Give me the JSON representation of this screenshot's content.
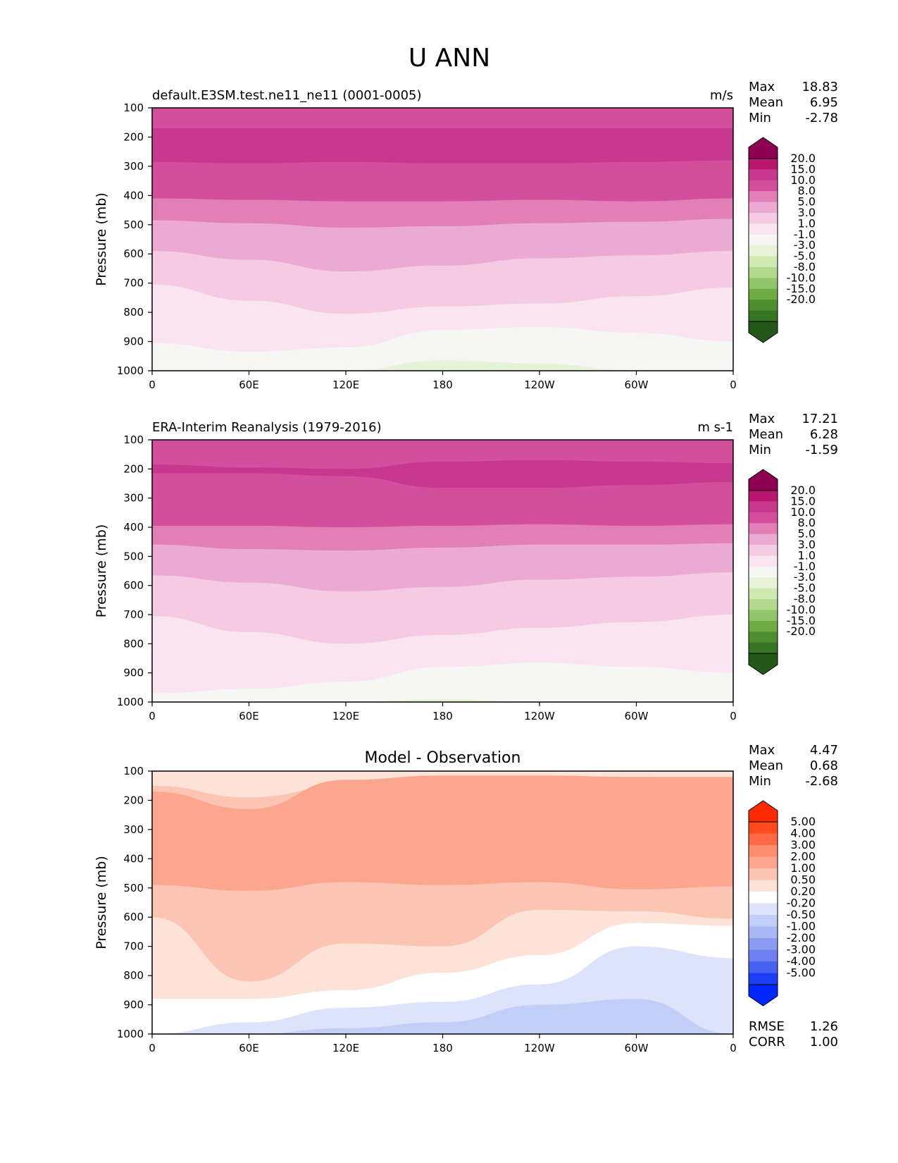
{
  "figure": {
    "title": "U ANN"
  },
  "levels": {
    "field": [
      "20.0",
      "15.0",
      "10.0",
      "8.0",
      "5.0",
      "3.0",
      "1.0",
      "-1.0",
      "-3.0",
      "-5.0",
      "-8.0",
      "-10.0",
      "-15.0",
      "-20.0"
    ],
    "diff": [
      "5.00",
      "4.00",
      "3.00",
      "2.00",
      "1.00",
      "0.50",
      "0.20",
      "-0.20",
      "-0.50",
      "-1.00",
      "-2.00",
      "-3.00",
      "-4.00",
      "-5.00"
    ]
  },
  "colors": {
    "field": [
      "#8e0152",
      "#b8166f",
      "#c8388e",
      "#d34f9d",
      "#e17fb6",
      "#ecaad3",
      "#f5cbe4",
      "#f9e4f0",
      "#f6f6f4",
      "#e7f3d6",
      "#cfe9b0",
      "#b2d98e",
      "#92c66a",
      "#6fac44",
      "#4d8f2f",
      "#357524",
      "#23581a"
    ],
    "diff": [
      "#ff2a00",
      "#ff4a1d",
      "#ff6a45",
      "#ff8d70",
      "#fda68f",
      "#fcc5b3",
      "#fde2d8",
      "#ffffff",
      "#dce3fb",
      "#c3cef8",
      "#a9b7f5",
      "#8b9bf2",
      "#6c80f0",
      "#4562f0",
      "#1a3df5",
      "#0026ff"
    ]
  },
  "chart_data": [
    {
      "type": "contour",
      "id": "test",
      "title_left": "default.E3SM.test.ne11_ne11 (0001-0005)",
      "title_right": "m/s",
      "title_center": "",
      "ylabel": "Pressure (mb)",
      "xlabel": "",
      "x_ticks": [
        "0",
        "60E",
        "120E",
        "180",
        "120W",
        "60W",
        "0"
      ],
      "y_ticks": [
        "100",
        "200",
        "300",
        "400",
        "500",
        "600",
        "700",
        "800",
        "900",
        "1000"
      ],
      "xlim": [
        0,
        360
      ],
      "ylim": [
        1000,
        100
      ],
      "stats": {
        "labels": [
          "Max",
          "Mean",
          "Min"
        ],
        "values": [
          "18.83",
          "6.95",
          "-2.78"
        ]
      },
      "colorbar": "field",
      "bands_from_top": [
        {
          "lower_level": "10.0",
          "level": [
            100,
            100,
            100,
            100,
            100,
            100,
            100
          ]
        },
        {
          "lower_level": "15.0",
          "level": [
            170,
            170,
            170,
            170,
            170,
            170,
            170
          ]
        },
        {
          "lower_level": "10.0",
          "level": [
            285,
            290,
            285,
            290,
            290,
            285,
            280
          ]
        },
        {
          "lower_level": "8.0",
          "level": [
            410,
            415,
            420,
            420,
            415,
            420,
            410
          ]
        },
        {
          "lower_level": "5.0",
          "level": [
            485,
            495,
            510,
            505,
            495,
            490,
            480
          ]
        },
        {
          "lower_level": "3.0",
          "level": [
            590,
            620,
            660,
            640,
            615,
            605,
            590
          ]
        },
        {
          "lower_level": "1.0",
          "level": [
            705,
            760,
            805,
            780,
            770,
            745,
            715
          ]
        },
        {
          "lower_level": "-1.0",
          "level": [
            905,
            935,
            920,
            860,
            850,
            870,
            900
          ]
        },
        {
          "lower_level": "-3.0",
          "level": [
            1000,
            1000,
            1000,
            965,
            975,
            1000,
            1000
          ]
        }
      ]
    },
    {
      "type": "contour",
      "id": "ref",
      "title_left": "ERA-Interim Reanalysis (1979-2016)",
      "title_right": "m s-1",
      "title_center": "",
      "ylabel": "Pressure (mb)",
      "xlabel": "",
      "x_ticks": [
        "0",
        "60E",
        "120E",
        "180",
        "120W",
        "60W",
        "0"
      ],
      "y_ticks": [
        "100",
        "200",
        "300",
        "400",
        "500",
        "600",
        "700",
        "800",
        "900",
        "1000"
      ],
      "xlim": [
        0,
        360
      ],
      "ylim": [
        1000,
        100
      ],
      "stats": {
        "labels": [
          "Max",
          "Mean",
          "Min"
        ],
        "values": [
          "17.21",
          "6.28",
          "-1.59"
        ]
      },
      "colorbar": "field",
      "bands_from_top": [
        {
          "lower_level": "10.0",
          "level": [
            100,
            100,
            100,
            100,
            100,
            100,
            100
          ]
        },
        {
          "lower_level": "15.0",
          "level": [
            185,
            195,
            200,
            175,
            170,
            175,
            180
          ]
        },
        {
          "lower_level": "10.0",
          "level": [
            215,
            215,
            225,
            265,
            265,
            255,
            245
          ]
        },
        {
          "lower_level": "8.0",
          "level": [
            395,
            395,
            400,
            395,
            390,
            395,
            390
          ]
        },
        {
          "lower_level": "5.0",
          "level": [
            460,
            475,
            480,
            470,
            460,
            460,
            455
          ]
        },
        {
          "lower_level": "3.0",
          "level": [
            565,
            590,
            620,
            605,
            580,
            570,
            555
          ]
        },
        {
          "lower_level": "1.0",
          "level": [
            705,
            760,
            800,
            770,
            745,
            725,
            700
          ]
        },
        {
          "lower_level": "-1.0",
          "level": [
            970,
            955,
            930,
            880,
            865,
            880,
            900
          ]
        },
        {
          "lower_level": "-3.0",
          "level": [
            1000,
            1000,
            1000,
            990,
            1000,
            1000,
            1000
          ]
        }
      ]
    },
    {
      "type": "contour",
      "id": "diff",
      "title_left": "",
      "title_right": "",
      "title_center": "Model - Observation",
      "ylabel": "Pressure (mb)",
      "xlabel": "",
      "x_ticks": [
        "0",
        "60E",
        "120E",
        "180",
        "120W",
        "60W",
        "0"
      ],
      "y_ticks": [
        "100",
        "200",
        "300",
        "400",
        "500",
        "600",
        "700",
        "800",
        "900",
        "1000"
      ],
      "xlim": [
        0,
        360
      ],
      "ylim": [
        1000,
        100
      ],
      "stats": {
        "labels": [
          "Max",
          "Mean",
          "Min"
        ],
        "values": [
          "4.47",
          "0.68",
          "-2.68"
        ]
      },
      "stats_bottom": {
        "labels": [
          "RMSE",
          "CORR"
        ],
        "values": [
          "1.26",
          "1.00"
        ]
      },
      "colorbar": "diff",
      "bands_from_top": [
        {
          "lower_level": "0.50",
          "level": [
            100,
            100,
            100,
            100,
            100,
            100,
            100
          ]
        },
        {
          "lower_level": "1.00",
          "level": [
            150,
            190,
            150,
            120,
            115,
            120,
            130
          ]
        },
        {
          "lower_level": "2.00",
          "level": [
            170,
            230,
            130,
            115,
            115,
            120,
            120
          ]
        },
        {
          "lower_level": "1.00",
          "level": [
            490,
            510,
            480,
            490,
            480,
            505,
            495
          ]
        },
        {
          "lower_level": "0.50",
          "level": [
            600,
            820,
            690,
            700,
            575,
            580,
            605
          ]
        },
        {
          "lower_level": "0.20",
          "level": [
            880,
            880,
            850,
            790,
            730,
            620,
            630
          ]
        },
        {
          "lower_level": "-0.20",
          "level": [
            1000,
            960,
            910,
            890,
            830,
            700,
            740
          ]
        },
        {
          "lower_level": "-0.50",
          "level": [
            1000,
            1000,
            980,
            960,
            900,
            880,
            1000
          ]
        }
      ]
    }
  ]
}
